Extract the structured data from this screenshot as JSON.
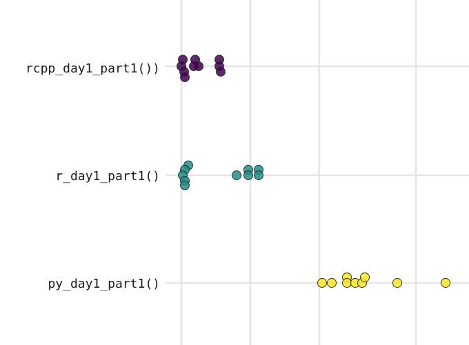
{
  "chart_data": {
    "type": "scatter",
    "title": "",
    "xlabel": "",
    "ylabel": "",
    "categories": [
      "rcpp_day1_part1())",
      "r_day1_part1()",
      "py_day1_part1()"
    ],
    "xlim": [
      0,
      4.2
    ],
    "x_gridlines": [
      0,
      1,
      2,
      3.4
    ],
    "grid": true,
    "legend": "none",
    "series": [
      {
        "category": "rcpp_day1_part1())",
        "color": "#440154",
        "points": [
          {
            "x": 0.02,
            "y": 0.12
          },
          {
            "x": 0.0,
            "y": 0.0
          },
          {
            "x": 0.04,
            "y": -0.1
          },
          {
            "x": 0.05,
            "y": -0.2
          },
          {
            "x": 0.18,
            "y": 0.0
          },
          {
            "x": 0.2,
            "y": 0.12
          },
          {
            "x": 0.25,
            "y": 0.0
          },
          {
            "x": 0.55,
            "y": 0.12
          },
          {
            "x": 0.55,
            "y": 0.0
          },
          {
            "x": 0.57,
            "y": -0.1
          }
        ]
      },
      {
        "category": "r_day1_part1()",
        "color": "#21908C",
        "points": [
          {
            "x": 0.1,
            "y": 0.18
          },
          {
            "x": 0.05,
            "y": 0.1
          },
          {
            "x": 0.02,
            "y": 0.0
          },
          {
            "x": 0.05,
            "y": -0.1
          },
          {
            "x": 0.05,
            "y": -0.18
          },
          {
            "x": 0.8,
            "y": 0.0
          },
          {
            "x": 0.97,
            "y": 0.1
          },
          {
            "x": 0.97,
            "y": 0.0
          },
          {
            "x": 1.12,
            "y": 0.1
          },
          {
            "x": 1.12,
            "y": 0.0
          }
        ]
      },
      {
        "category": "py_day1_part1()",
        "color": "#FDE725",
        "points": [
          {
            "x": 2.04,
            "y": 0.0
          },
          {
            "x": 2.18,
            "y": 0.0
          },
          {
            "x": 2.4,
            "y": 0.1
          },
          {
            "x": 2.4,
            "y": 0.0
          },
          {
            "x": 2.52,
            "y": 0.0
          },
          {
            "x": 2.62,
            "y": 0.0
          },
          {
            "x": 2.66,
            "y": 0.1
          },
          {
            "x": 3.13,
            "y": 0.0
          },
          {
            "x": 3.83,
            "y": 0.0
          }
        ]
      }
    ]
  }
}
